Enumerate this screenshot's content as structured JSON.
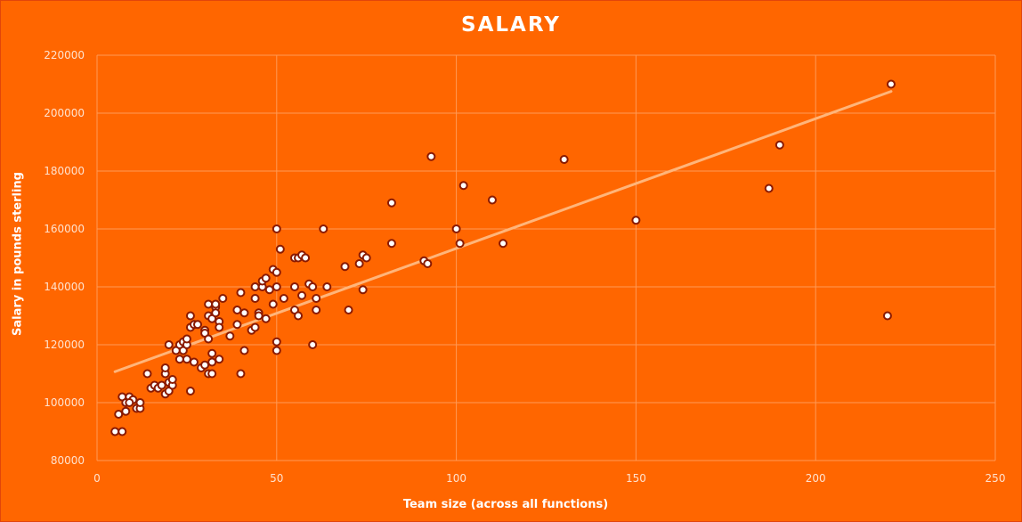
{
  "chart_data": {
    "type": "scatter",
    "title": "SALARY",
    "xlabel": "Team size  (across  all functions)",
    "ylabel": "Salary in pounds sterling",
    "xlim": [
      0,
      250
    ],
    "ylim": [
      80000,
      220000
    ],
    "x_ticks": [
      "0",
      "50",
      "100",
      "150",
      "200",
      "250"
    ],
    "y_ticks": [
      "80000",
      "100000",
      "120000",
      "140000",
      "160000",
      "180000",
      "200000",
      "220000"
    ],
    "grid": true,
    "legend": "none",
    "trendline": {
      "type": "linear",
      "x": [
        5,
        221
      ],
      "y": [
        110700,
        207500
      ]
    },
    "colors": {
      "background": "#ff6600",
      "point_fill": "#ffffff",
      "point_stroke": "#8a1a00",
      "trendline": "#ffb57a",
      "gridline": "#ff9a57"
    },
    "series": [
      {
        "x": [
          5,
          7,
          6,
          8,
          7,
          9,
          8,
          10,
          9,
          11,
          12,
          12,
          14,
          15,
          16,
          17,
          18,
          19,
          19,
          20,
          20,
          19,
          20,
          21,
          21,
          22,
          23,
          23,
          24,
          24,
          25,
          25,
          25,
          26,
          26,
          26,
          27,
          27,
          28,
          29,
          30,
          30,
          30,
          31,
          31,
          31,
          31,
          32,
          32,
          32,
          32,
          33,
          33,
          33,
          34,
          34,
          34,
          35,
          37,
          39,
          39,
          40,
          40,
          41,
          41,
          43,
          44,
          44,
          44,
          45,
          45,
          46,
          46,
          47,
          47,
          48,
          49,
          49,
          50,
          50,
          50,
          50,
          50,
          51,
          52,
          55,
          55,
          55,
          56,
          56,
          57,
          57,
          58,
          59,
          60,
          60,
          61,
          61,
          63,
          64,
          69,
          70,
          73,
          74,
          74,
          75,
          82,
          82,
          91,
          92,
          93,
          100,
          101,
          102,
          110,
          113,
          130,
          150,
          187,
          190,
          220,
          221
        ],
        "y": [
          90000,
          90000,
          96000,
          97000,
          102000,
          102000,
          100000,
          101000,
          100000,
          98000,
          98000,
          100000,
          110000,
          105000,
          106000,
          105000,
          106000,
          103000,
          110000,
          104000,
          107000,
          112000,
          120000,
          106000,
          108000,
          118000,
          120000,
          115000,
          118000,
          121000,
          115000,
          120000,
          122000,
          130000,
          104000,
          126000,
          114000,
          127000,
          127000,
          112000,
          125000,
          124000,
          113000,
          110000,
          122000,
          130000,
          134000,
          114000,
          117000,
          110000,
          129000,
          133000,
          131000,
          134000,
          128000,
          115000,
          126000,
          136000,
          123000,
          132000,
          127000,
          110000,
          138000,
          118000,
          131000,
          125000,
          126000,
          140000,
          136000,
          131000,
          130000,
          140000,
          142000,
          143000,
          129000,
          139000,
          146000,
          134000,
          160000,
          145000,
          140000,
          121000,
          118000,
          153000,
          136000,
          150000,
          140000,
          132000,
          150000,
          130000,
          151000,
          137000,
          150000,
          141000,
          140000,
          120000,
          136000,
          132000,
          160000,
          140000,
          147000,
          132000,
          148000,
          151000,
          139000,
          150000,
          169000,
          155000,
          149000,
          148000,
          185000,
          160000,
          155000,
          175000,
          170000,
          155000,
          184000,
          163000,
          174000,
          189000,
          130000,
          210000
        ]
      }
    ]
  }
}
